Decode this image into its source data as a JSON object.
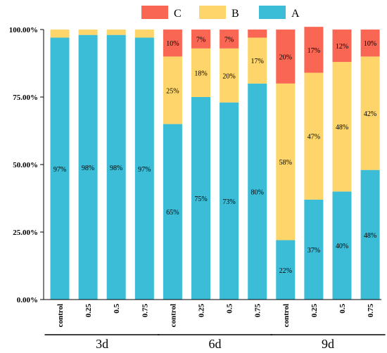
{
  "chart_data": {
    "type": "bar",
    "stacked": true,
    "legend": {
      "position": "top",
      "entries": [
        "C",
        "B",
        "A"
      ]
    },
    "ylim": [
      0,
      100
    ],
    "yticks": [
      "0.00%",
      "25.00%",
      "50.00%",
      "75.00%",
      "100.00%"
    ],
    "categories": [
      "control",
      "0.25",
      "0.5",
      "0.75",
      "control",
      "0.25",
      "0.5",
      "0.75",
      "control",
      "0.25",
      "0.5",
      "0.75"
    ],
    "groups": [
      {
        "label": "3d",
        "size": 4
      },
      {
        "label": "6d",
        "size": 4
      },
      {
        "label": "9d",
        "size": 4
      }
    ],
    "series": [
      {
        "name": "A",
        "color": "#3bbcd7",
        "values": [
          97,
          98,
          98,
          97,
          65,
          75,
          73,
          80,
          22,
          37,
          40,
          48
        ],
        "labels": [
          "97%",
          "98%",
          "98%",
          "97%",
          "65%",
          "75%",
          "73%",
          "80%",
          "22%",
          "37%",
          "40%",
          "48%"
        ]
      },
      {
        "name": "B",
        "color": "#fdd56a",
        "values": [
          3,
          2,
          2,
          3,
          25,
          18,
          20,
          17,
          58,
          47,
          48,
          42
        ],
        "labels": [
          "",
          "",
          "",
          "",
          "25%",
          "18%",
          "20%",
          "17%",
          "58%",
          "47%",
          "48%",
          "42%"
        ]
      },
      {
        "name": "C",
        "color": "#f96754",
        "values": [
          0,
          0,
          0,
          0,
          10,
          7,
          7,
          3,
          20,
          17,
          12,
          10
        ],
        "labels": [
          "",
          "",
          "",
          "",
          "10%",
          "7%",
          "7%",
          "",
          "20%",
          "17%",
          "12%",
          "10%"
        ]
      }
    ]
  }
}
